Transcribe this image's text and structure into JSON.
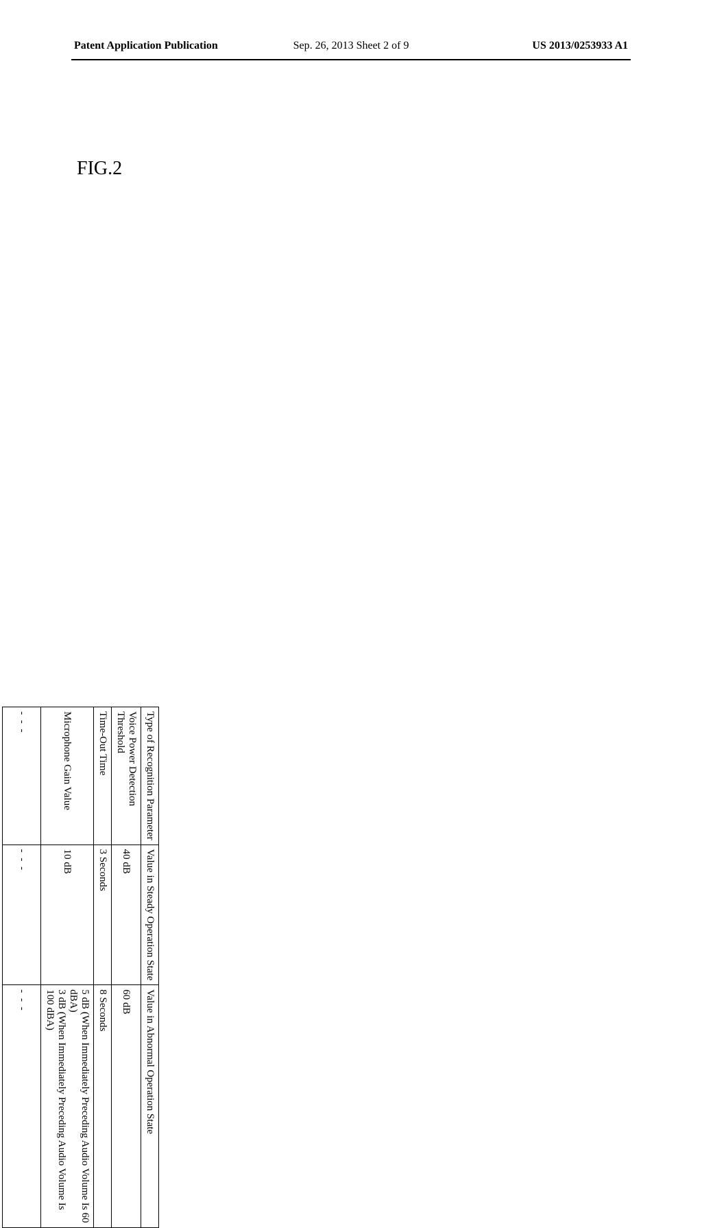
{
  "header": {
    "left": "Patent Application Publication",
    "center": "Sep. 26, 2013  Sheet 2 of 9",
    "right": "US 2013/0253933 A1"
  },
  "figure": {
    "label": "FIG.2",
    "columns": {
      "type": "Type of Recognition Parameter",
      "steady": "Value in Steady Operation State",
      "abnormal": "Value in Abnormal Operation State"
    },
    "rows": [
      {
        "param": "Voice Power Detection Threshold",
        "steady": "40 dB",
        "abnormal": "60 dB"
      },
      {
        "param": "Time-Out Time",
        "steady": "3 Seconds",
        "abnormal": "8 Seconds"
      },
      {
        "param": "Microphone Gain Value",
        "steady": "10 dB",
        "abnormal": "5 dB (When Immediately Preceding Audio Volume Is 60 dBA)\n3 dB (When Immediately Preceding Audio Volume Is 100 dBA)"
      }
    ],
    "dots": "- - -"
  }
}
